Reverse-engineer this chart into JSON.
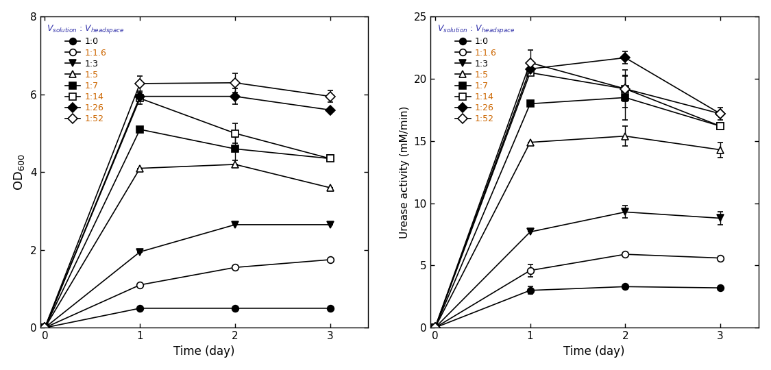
{
  "time": [
    0,
    1,
    2,
    3
  ],
  "od_data": {
    "1:0": {
      "y": [
        0,
        0.5,
        0.5,
        0.5
      ],
      "yerr": [
        0,
        0.0,
        0.0,
        0.0
      ]
    },
    "1:1.6": {
      "y": [
        0,
        1.1,
        1.55,
        1.75
      ],
      "yerr": [
        0,
        0.0,
        0.0,
        0.0
      ]
    },
    "1:3": {
      "y": [
        0,
        1.95,
        2.65,
        2.65
      ],
      "yerr": [
        0,
        0.0,
        0.0,
        0.0
      ]
    },
    "1:5": {
      "y": [
        0,
        4.1,
        4.2,
        3.6
      ],
      "yerr": [
        0,
        0.0,
        0.0,
        0.0
      ]
    },
    "1:7": {
      "y": [
        0,
        5.1,
        4.6,
        4.35
      ],
      "yerr": [
        0,
        0.0,
        0.3,
        0.0
      ]
    },
    "1:14": {
      "y": [
        0,
        5.9,
        5.0,
        4.35
      ],
      "yerr": [
        0,
        0.15,
        0.25,
        0.0
      ]
    },
    "1:26": {
      "y": [
        0,
        5.95,
        5.95,
        5.6
      ],
      "yerr": [
        0,
        0.0,
        0.2,
        0.0
      ]
    },
    "1:52": {
      "y": [
        0,
        6.28,
        6.3,
        5.95
      ],
      "yerr": [
        0,
        0.2,
        0.25,
        0.15
      ]
    }
  },
  "urease_data": {
    "1:0": {
      "y": [
        0,
        3.0,
        3.3,
        3.2
      ],
      "yerr": [
        0,
        0.3,
        0.0,
        0.0
      ]
    },
    "1:1.6": {
      "y": [
        0,
        4.6,
        5.9,
        5.6
      ],
      "yerr": [
        0,
        0.5,
        0.0,
        0.15
      ]
    },
    "1:3": {
      "y": [
        0,
        7.7,
        9.3,
        8.8
      ],
      "yerr": [
        0,
        0.0,
        0.5,
        0.5
      ]
    },
    "1:5": {
      "y": [
        0,
        14.9,
        15.4,
        14.3
      ],
      "yerr": [
        0,
        0.0,
        0.8,
        0.6
      ]
    },
    "1:7": {
      "y": [
        0,
        18.0,
        18.5,
        16.2
      ],
      "yerr": [
        0,
        0.0,
        1.8,
        0.0
      ]
    },
    "1:14": {
      "y": [
        0,
        20.5,
        19.2,
        16.2
      ],
      "yerr": [
        0,
        0.0,
        1.5,
        0.0
      ]
    },
    "1:26": {
      "y": [
        0,
        20.8,
        21.7,
        17.2
      ],
      "yerr": [
        0,
        0.5,
        0.5,
        0.0
      ]
    },
    "1:52": {
      "y": [
        0,
        21.3,
        19.2,
        17.2
      ],
      "yerr": [
        0,
        1.0,
        1.0,
        0.5
      ]
    }
  },
  "series_styles": {
    "1:0": {
      "marker": "o",
      "filled": true
    },
    "1:1.6": {
      "marker": "o",
      "filled": false
    },
    "1:3": {
      "marker": "v",
      "filled": true
    },
    "1:5": {
      "marker": "^",
      "filled": false
    },
    "1:7": {
      "marker": "s",
      "filled": true
    },
    "1:14": {
      "marker": "s",
      "filled": false
    },
    "1:26": {
      "marker": "D",
      "filled": true
    },
    "1:52": {
      "marker": "D",
      "filled": false
    }
  },
  "legend_label_colors": {
    "1:0": "#000000",
    "1:1.6": "#cc6600",
    "1:3": "#000000",
    "1:5": "#cc6600",
    "1:7": "#cc6600",
    "1:14": "#cc6600",
    "1:26": "#cc6600",
    "1:52": "#cc6600"
  },
  "od_ylim": [
    0,
    8
  ],
  "od_yticks": [
    0,
    2,
    4,
    6,
    8
  ],
  "urease_ylim": [
    0,
    25
  ],
  "urease_yticks": [
    0,
    5,
    10,
    15,
    20,
    25
  ],
  "xlim": [
    -0.05,
    3.4
  ],
  "xticks": [
    0,
    1,
    2,
    3
  ],
  "xlabel": "Time (day)",
  "marker_size": 7,
  "linewidth": 1.2,
  "capsize": 3,
  "elinewidth": 1.0
}
